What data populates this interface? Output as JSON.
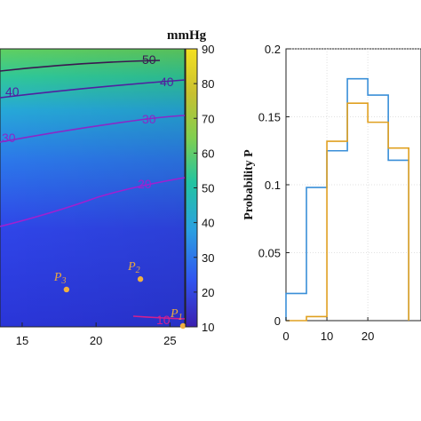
{
  "chart_data": [
    {
      "type": "heatmap",
      "title": "",
      "xlabel": "",
      "ylabel": "",
      "x_tick_labels": [
        "15",
        "20",
        "25"
      ],
      "x_ticks": [
        15,
        20,
        25
      ],
      "xlim": [
        13.5,
        26
      ],
      "colorbar": {
        "unit_label": "mmHg",
        "range": [
          10,
          90
        ],
        "ticks": [
          10,
          20,
          30,
          40,
          50,
          60,
          70,
          80,
          90
        ],
        "tick_labels": [
          "10",
          "20",
          "30",
          "40",
          "50",
          "60",
          "70",
          "80",
          "90"
        ],
        "colors": [
          "#3a1fb0",
          "#3055f0",
          "#2aa0e0",
          "#22c4a0",
          "#80cf50",
          "#c8c030",
          "#f4e020"
        ]
      },
      "contours": [
        {
          "level": 10,
          "label": "10",
          "color": "#d02090"
        },
        {
          "level": 20,
          "label": "20",
          "color": "#a020d0"
        },
        {
          "level": 30,
          "label": "30",
          "color": "#8a28c8"
        },
        {
          "level": 40,
          "label": "40",
          "color": "#5020a0"
        },
        {
          "level": 50,
          "label": "50",
          "color": "#3a1850"
        }
      ],
      "points": [
        {
          "label": "P",
          "sub": "1",
          "x": 26,
          "value": 10
        },
        {
          "label": "P",
          "sub": "2",
          "x": 23,
          "value": 24
        },
        {
          "label": "P",
          "sub": "3",
          "x": 18,
          "value": 21
        }
      ],
      "point_color": "#f0b040"
    },
    {
      "type": "line",
      "subtype": "step-histogram",
      "title": "",
      "xlabel": "",
      "ylabel": "Probability P",
      "xlim": [
        0,
        33
      ],
      "ylim": [
        0,
        0.2
      ],
      "x_ticks": [
        0,
        10,
        20
      ],
      "x_tick_labels": [
        "0",
        "10",
        "20"
      ],
      "y_ticks": [
        0,
        0.05,
        0.1,
        0.15,
        0.2
      ],
      "y_tick_labels": [
        "0",
        "0.05",
        "0.1",
        "0.15",
        "0.2"
      ],
      "grid": true,
      "bin_edges": [
        0,
        5,
        10,
        15,
        20,
        25,
        30
      ],
      "series": [
        {
          "color": "#3a8fd8",
          "values": [
            0.02,
            0.098,
            0.125,
            0.178,
            0.166,
            0.118
          ]
        },
        {
          "color": "#e0a020",
          "values": [
            0.0,
            0.003,
            0.132,
            0.16,
            0.146,
            0.127
          ]
        }
      ]
    }
  ]
}
